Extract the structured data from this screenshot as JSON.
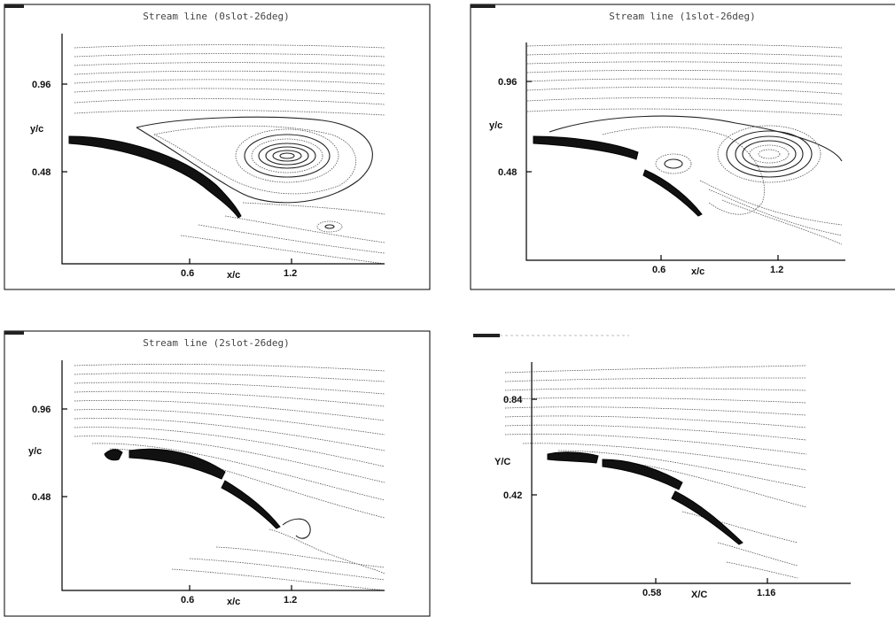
{
  "panels": [
    {
      "title": "Stream line (0slot-26deg)",
      "ytick_top": "0.96",
      "ytick_bottom": "0.48",
      "xtick_left": "0.6",
      "xtick_right": "1.2",
      "xlabel": "x/c",
      "ylabel": "y/c"
    },
    {
      "title": "Stream line (1slot-26deg)",
      "ytick_top": "0.96",
      "ytick_bottom": "0.48",
      "xtick_left": "0.6",
      "xtick_right": "1.2",
      "xlabel": "x/c",
      "ylabel": "y/c"
    },
    {
      "title": "Stream line (2slot-26deg)",
      "ytick_top": "0.96",
      "ytick_bottom": "0.48",
      "xtick_left": "0.6",
      "xtick_right": "1.2",
      "xlabel": "x/c",
      "ylabel": "y/c"
    },
    {
      "title": "",
      "ytick_top": "0.84",
      "ytick_bottom": "0.42",
      "xtick_left": "0.58",
      "xtick_right": "1.16",
      "xlabel": "X/C",
      "ylabel": "Y/C"
    }
  ]
}
